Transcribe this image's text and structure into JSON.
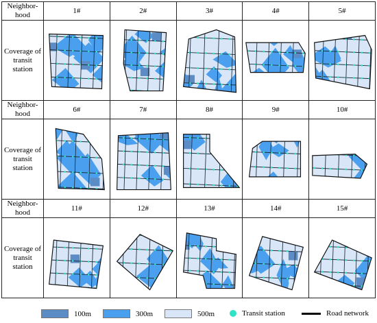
{
  "table": {
    "rows": [
      {
        "header": "Neighbor-hood",
        "labels": [
          "1#",
          "2#",
          "3#",
          "4#",
          "5#"
        ],
        "row_label": "Coverage of transit station"
      },
      {
        "header": "Neighbor-hood",
        "labels": [
          "6#",
          "7#",
          "8#",
          "9#",
          "10#"
        ],
        "row_label": "Coverage of transit station"
      },
      {
        "header": "Neighbor-hood",
        "labels": [
          "11#",
          "12#",
          "13#",
          "14#",
          "15#"
        ],
        "row_label": "Coverage of transit station"
      }
    ]
  },
  "legend": [
    {
      "label": "100m"
    },
    {
      "label": "300m"
    },
    {
      "label": "500m"
    },
    {
      "label": "Transit station"
    },
    {
      "label": "Road network"
    }
  ]
}
